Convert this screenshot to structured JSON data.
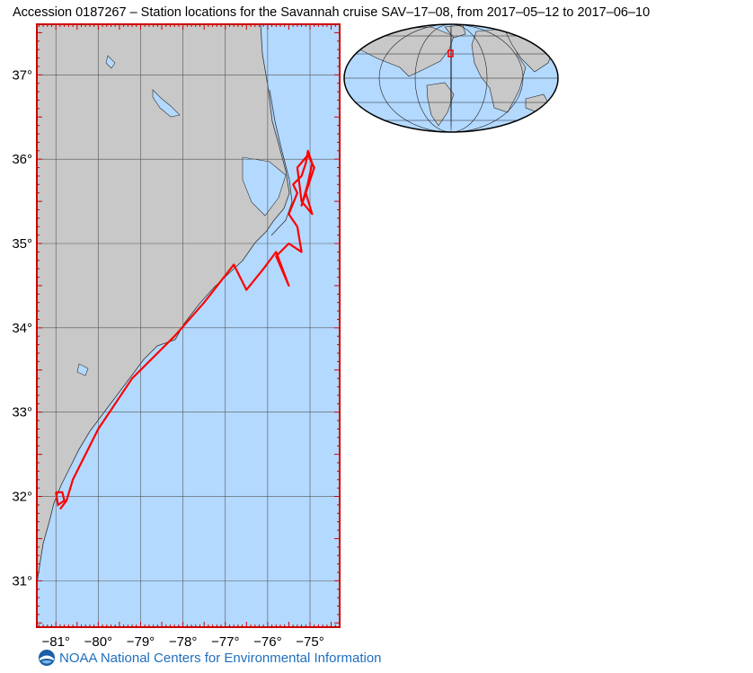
{
  "title": "Accession 0187267 – Station locations for the Savannah cruise SAV–17–08, from 2017–05–12 to 2017–06–10",
  "map": {
    "lon_labels": [
      "-81°",
      "-80°",
      "-79°",
      "-78°",
      "-77°",
      "-76°",
      "-75°"
    ],
    "lat_labels": [
      "37°",
      "36°",
      "35°",
      "34°",
      "33°",
      "32°",
      "31°"
    ],
    "lon_range": [
      -81.45,
      -74.3
    ],
    "lat_range": [
      30.45,
      37.6
    ],
    "colors": {
      "land": "#c8c8c8",
      "ocean": "#b3d9ff",
      "track": "#ff0000",
      "frame": "#cc0000",
      "grid": "#555555"
    },
    "track": [
      [
        -80.9,
        31.85
      ],
      [
        -80.75,
        31.95
      ],
      [
        -80.6,
        32.2
      ],
      [
        -80.3,
        32.5
      ],
      [
        -80.0,
        32.8
      ],
      [
        -79.6,
        33.1
      ],
      [
        -79.2,
        33.4
      ],
      [
        -78.8,
        33.6
      ],
      [
        -78.2,
        33.9
      ],
      [
        -77.5,
        34.3
      ],
      [
        -76.8,
        34.75
      ],
      [
        -76.5,
        34.45
      ],
      [
        -76.1,
        34.7
      ],
      [
        -75.8,
        34.9
      ],
      [
        -75.5,
        34.5
      ],
      [
        -75.8,
        34.85
      ],
      [
        -75.5,
        35.0
      ],
      [
        -75.2,
        34.9
      ],
      [
        -75.3,
        35.2
      ],
      [
        -75.5,
        35.35
      ],
      [
        -75.3,
        35.6
      ],
      [
        -75.4,
        35.7
      ],
      [
        -75.2,
        35.8
      ],
      [
        -75.1,
        35.95
      ],
      [
        -75.05,
        36.1
      ],
      [
        -74.95,
        35.95
      ],
      [
        -75.1,
        35.6
      ],
      [
        -74.95,
        35.35
      ],
      [
        -75.2,
        35.5
      ],
      [
        -75.3,
        35.9
      ],
      [
        -75.05,
        36.05
      ],
      [
        -74.9,
        35.9
      ],
      [
        -75.2,
        35.45
      ],
      [
        -75.0,
        35.8
      ]
    ],
    "start_loop": [
      [
        -81.0,
        32.05
      ],
      [
        -80.85,
        32.05
      ],
      [
        -80.8,
        31.95
      ],
      [
        -80.95,
        31.9
      ],
      [
        -81.0,
        32.05
      ]
    ]
  },
  "inset": {
    "colors": {
      "land": "#c8c8c8",
      "ocean": "#b3d9ff",
      "marker": "#ff0000"
    }
  },
  "footer": {
    "text": "NOAA National Centers for Environmental Information",
    "logo": "noaa-logo"
  }
}
